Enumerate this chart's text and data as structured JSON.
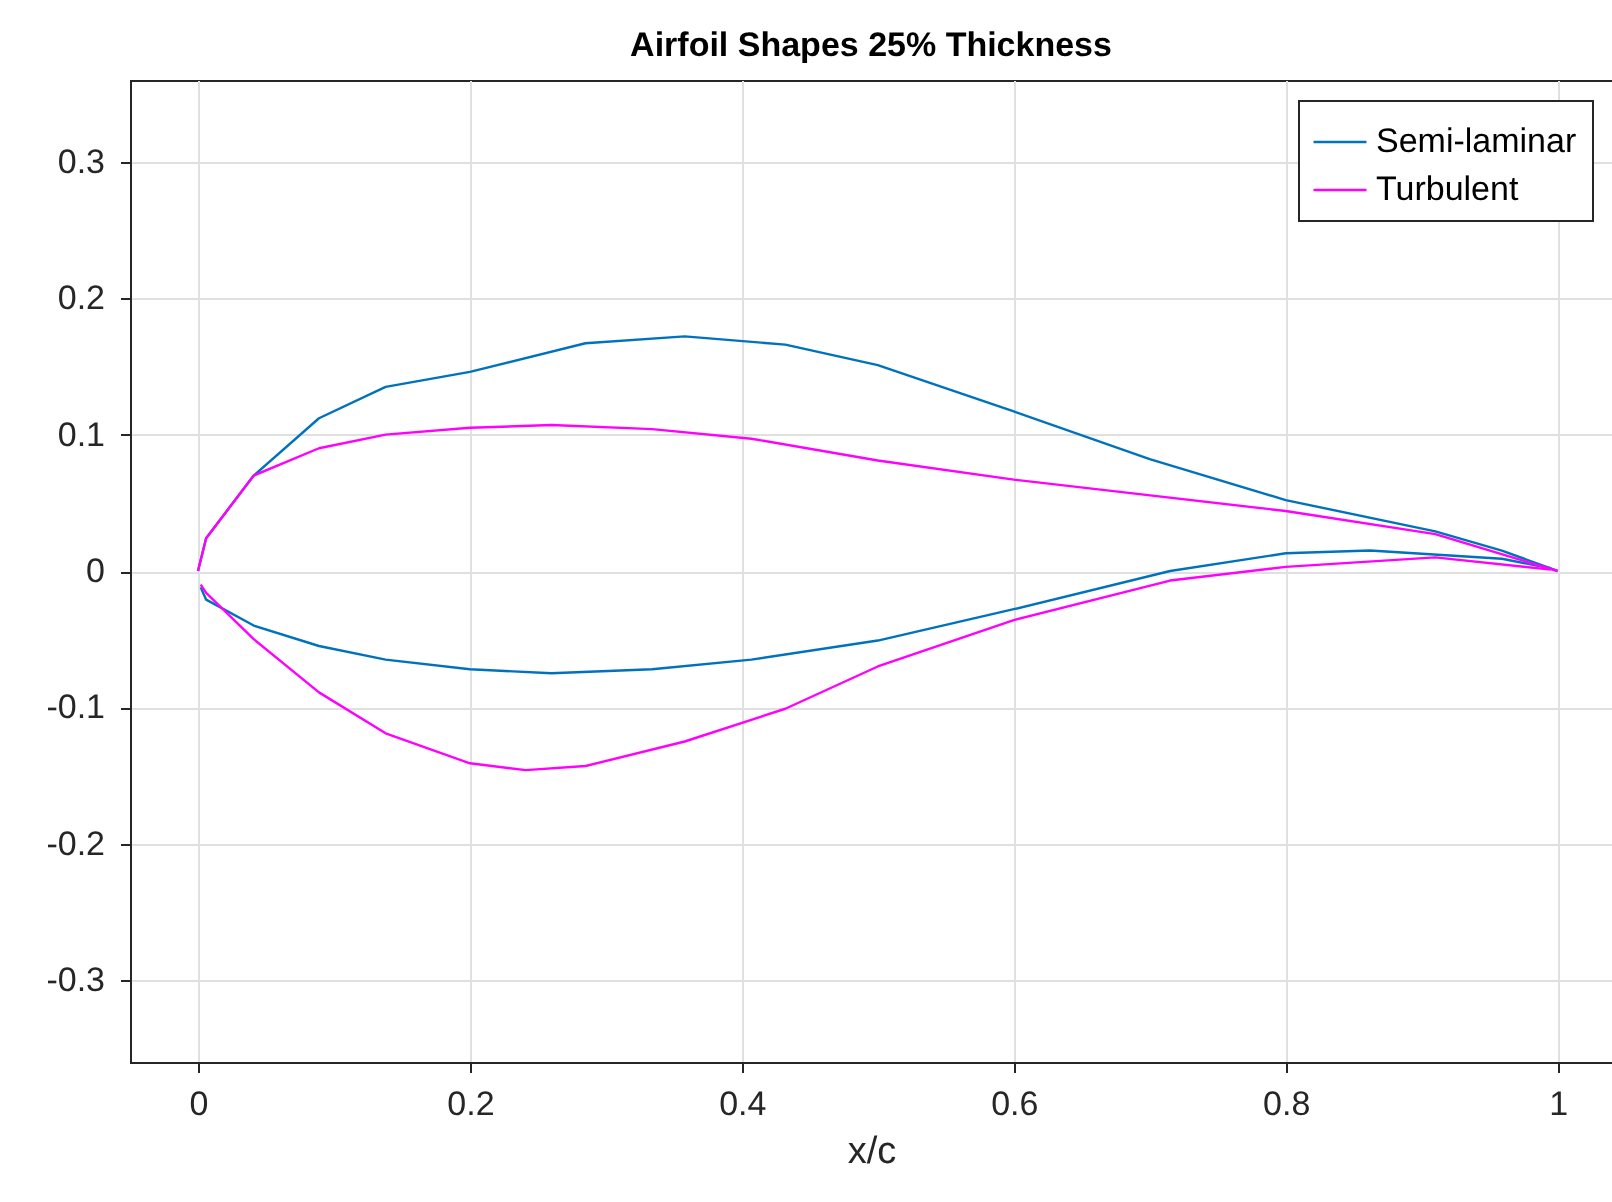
{
  "chart_data": {
    "type": "line",
    "title": "Airfoil Shapes 25% Thickness",
    "xlabel": "x/c",
    "xlim": [
      -0.05,
      1.04
    ],
    "ylim": [
      -0.36,
      0.36
    ],
    "xticks": [
      0,
      0.2,
      0.4,
      0.6,
      0.8,
      1
    ],
    "yticks": [
      -0.3,
      -0.2,
      -0.1,
      0,
      0.1,
      0.2,
      0.3
    ],
    "grid": true,
    "legend": "top right",
    "marker": "none",
    "line_style": "solid",
    "series": [
      {
        "name": "Semi-laminar",
        "color": "#0072bd",
        "x": [
          0,
          0.006,
          0.041,
          0.089,
          0.138,
          0.2,
          0.285,
          0.358,
          0.432,
          0.5,
          0.6,
          0.7,
          0.8,
          0.91,
          0.959,
          1
        ],
        "values": [
          0,
          0.024,
          0.07,
          0.112,
          0.135,
          0.146,
          0.167,
          0.172,
          0.166,
          0.151,
          0.117,
          0.082,
          0.052,
          0.029,
          0.015,
          0
        ]
      },
      {
        "color": "#0072bd",
        "x": [
          0.002,
          0.006,
          0.041,
          0.089,
          0.138,
          0.2,
          0.26,
          0.334,
          0.407,
          0.5,
          0.6,
          0.715,
          0.8,
          0.862,
          0.959,
          0.995
        ],
        "values": [
          -0.012,
          -0.021,
          -0.04,
          -0.055,
          -0.065,
          -0.072,
          -0.075,
          -0.072,
          -0.065,
          -0.051,
          -0.028,
          0,
          0.013,
          0.015,
          0.009,
          0.002
        ]
      },
      {
        "name": "Turbulent",
        "color": "#ff00ff",
        "x": [
          0,
          0.006,
          0.041,
          0.089,
          0.138,
          0.2,
          0.26,
          0.334,
          0.407,
          0.5,
          0.6,
          0.8,
          0.91,
          1
        ],
        "values": [
          0,
          0.024,
          0.07,
          0.09,
          0.1,
          0.105,
          0.107,
          0.104,
          0.097,
          0.081,
          0.067,
          0.044,
          0.027,
          0
        ]
      },
      {
        "color": "#ff00ff",
        "x": [
          0.002,
          0.006,
          0.041,
          0.089,
          0.138,
          0.2,
          0.241,
          0.285,
          0.358,
          0.432,
          0.5,
          0.6,
          0.715,
          0.8,
          0.91,
          0.995
        ],
        "values": [
          -0.01,
          -0.016,
          -0.05,
          -0.089,
          -0.119,
          -0.141,
          -0.146,
          -0.143,
          -0.125,
          -0.101,
          -0.07,
          -0.036,
          -0.007,
          0.003,
          0.01,
          0.001
        ]
      }
    ]
  }
}
